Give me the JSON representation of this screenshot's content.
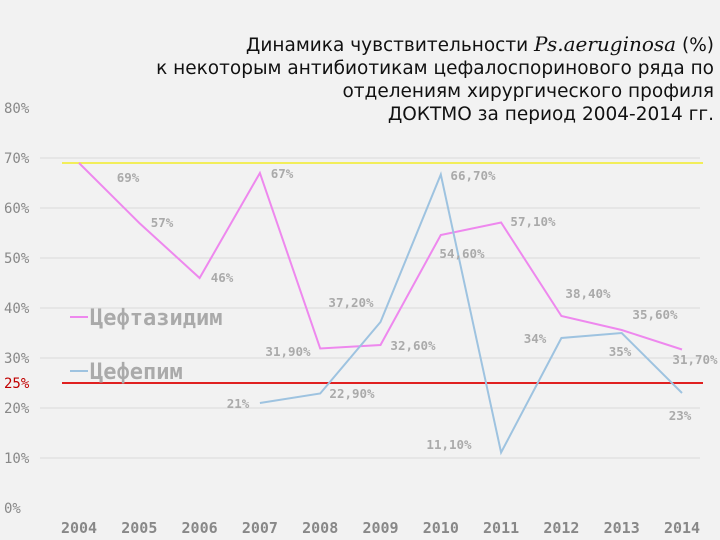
{
  "chart_data": {
    "type": "line",
    "title": {
      "prefix": "Динамика чувствительности",
      "species": "Ps.aeruginosa",
      "unit": "(%)",
      "line2": "к некоторым антибиотикам цефалоспоринового ряда по",
      "line3": "отделениям хирургического профиля",
      "line4": "ДОКТМО за период 2004-2014 гг."
    },
    "x": [
      "2004",
      "2005",
      "2006",
      "2007",
      "2008",
      "2009",
      "2010",
      "2011",
      "2012",
      "2013",
      "2014"
    ],
    "y_ticks": [
      "0%",
      "10%",
      "20%",
      "30%",
      "40%",
      "50%",
      "60%",
      "70%",
      "80%"
    ],
    "ylim": [
      0,
      80
    ],
    "grid": "horizontal",
    "series": [
      {
        "name": "Цефтазидим",
        "color": "#ee88ee",
        "values": [
          69,
          57,
          46,
          67,
          31.9,
          32.6,
          54.6,
          57.1,
          38.4,
          35.6,
          31.7
        ],
        "labels": [
          "69%",
          "57%",
          "46%",
          "67%",
          "31,90%",
          "32,60%",
          "54,60%",
          "57,10%",
          "38,40%",
          "35,60%",
          "31,70%"
        ]
      },
      {
        "name": "Цефепим",
        "color": "#9ec3e0",
        "values": [
          null,
          null,
          null,
          21,
          22.9,
          37.2,
          66.7,
          11.1,
          34,
          35,
          23
        ],
        "labels": [
          null,
          null,
          null,
          "21%",
          "22,90%",
          "37,20%",
          "66,70%",
          "11,10%",
          "34%",
          "35%",
          "23%"
        ]
      }
    ],
    "reference_lines": [
      {
        "value": 69,
        "color": "#f2ee5a"
      },
      {
        "value": 25,
        "color": "#e02020",
        "label": "25%"
      }
    ],
    "colors": {
      "label_text": "#aaaaaa",
      "axis_text": "#888888",
      "ref_label": "#c00000"
    }
  }
}
